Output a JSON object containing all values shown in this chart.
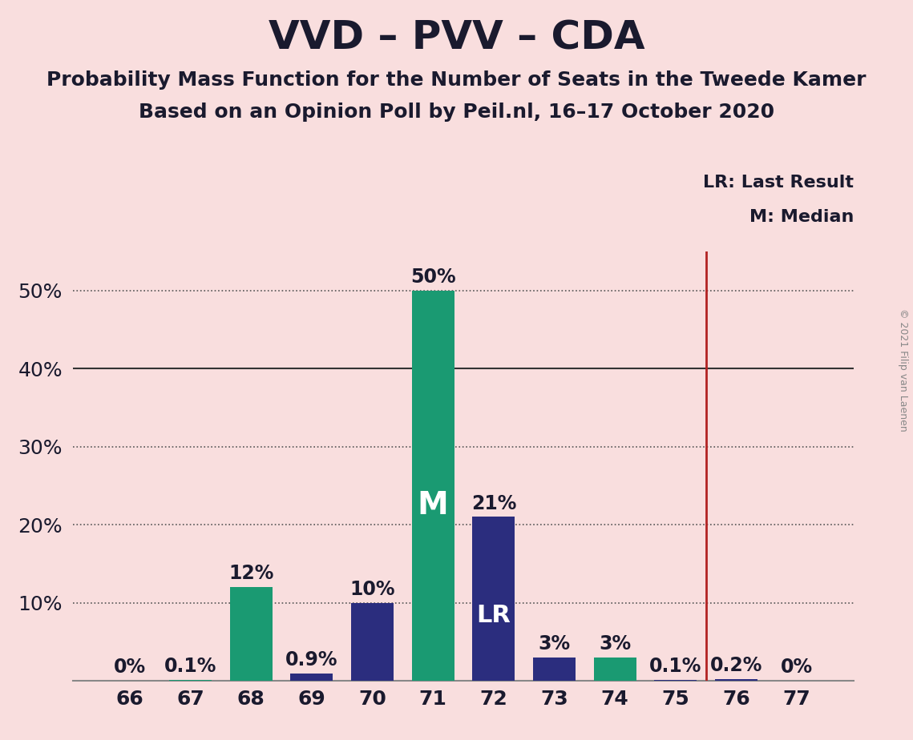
{
  "title": "VVD – PVV – CDA",
  "subtitle1": "Probability Mass Function for the Number of Seats in the Tweede Kamer",
  "subtitle2": "Based on an Opinion Poll by Peil.nl, 16–17 October 2020",
  "copyright": "© 2021 Filip van Laenen",
  "seats": [
    66,
    67,
    68,
    69,
    70,
    71,
    72,
    73,
    74,
    75,
    76,
    77
  ],
  "probabilities": [
    0.0,
    0.1,
    12.0,
    0.9,
    10.0,
    50.0,
    21.0,
    3.0,
    3.0,
    0.1,
    0.2,
    0.0
  ],
  "bar_colors": [
    "#1a9a72",
    "#1a9a72",
    "#1a9a72",
    "#2b2d7e",
    "#2b2d7e",
    "#1a9a72",
    "#2b2d7e",
    "#2b2d7e",
    "#1a9a72",
    "#2b2d7e",
    "#2b2d7e",
    "#1a9a72"
  ],
  "median_seat": 71,
  "last_result_seat": 75.5,
  "median_label": "M",
  "last_result_label": "LR",
  "legend_lr": "LR: Last Result",
  "legend_m": "M: Median",
  "background_color": "#f9dede",
  "bar_teal": "#1a9a72",
  "bar_navy": "#2b2d7e",
  "vline_color": "#b22222",
  "ylim_max": 55,
  "yticks": [
    10,
    20,
    30,
    40,
    50
  ],
  "dotted_lines": [
    10,
    20,
    30,
    50
  ],
  "solid_lines": [
    40
  ],
  "title_fontsize": 36,
  "subtitle_fontsize": 18,
  "label_fontsize": 17,
  "tick_fontsize": 18,
  "text_color": "#1a1a2e"
}
